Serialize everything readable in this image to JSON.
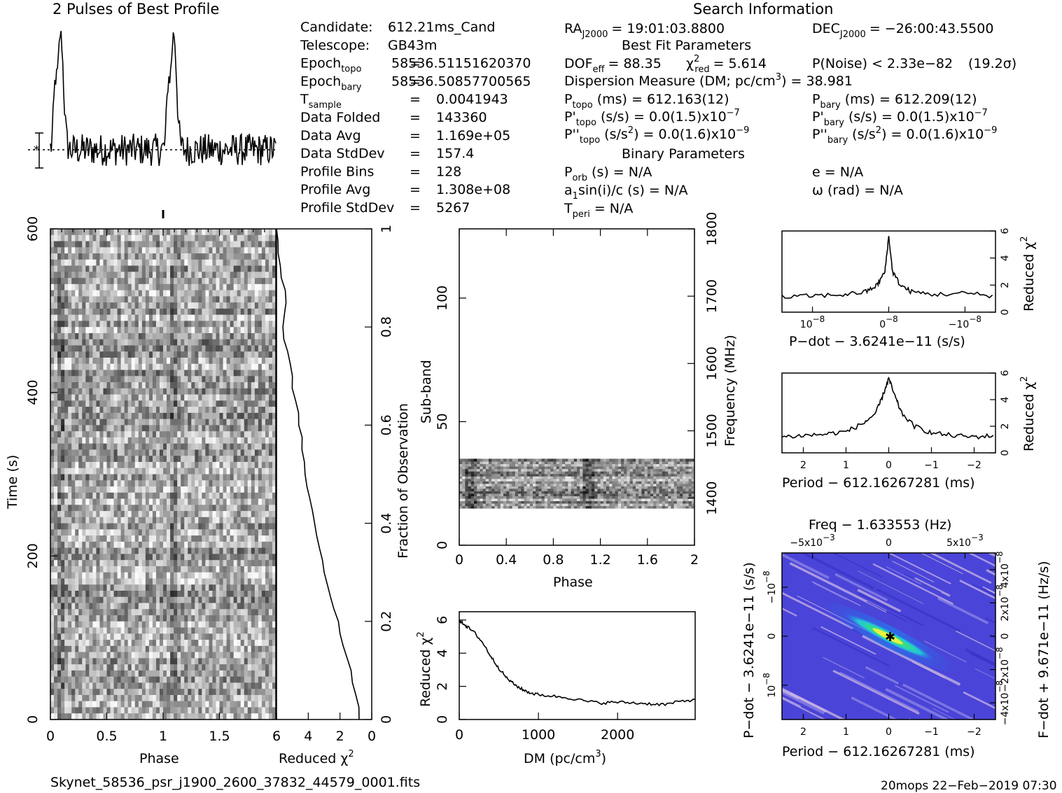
{
  "title_profile": "2 Pulses of Best Profile",
  "title_search": "Search Information",
  "info_left": [
    {
      "label": "Candidate:",
      "eq": "",
      "value": "612.21ms_Cand"
    },
    {
      "label": "Telescope:",
      "eq": "",
      "value": "GB43m"
    },
    {
      "label": "Epoch",
      "sub": "topo",
      "eq": "=",
      "value": "58536.5115162037​0"
    },
    {
      "label": "Epoch",
      "sub": "bary",
      "eq": "=",
      "value": "58536.50857700565"
    },
    {
      "label": "T",
      "sub": "sample",
      "eq": "=",
      "value": "0.0041943"
    },
    {
      "label": "Data Folded",
      "eq": "=",
      "value": "143360"
    },
    {
      "label": "Data Avg",
      "eq": "=",
      "value": "1.169e+05"
    },
    {
      "label": "Data StdDev",
      "eq": "=",
      "value": "157.4"
    },
    {
      "label": "Profile Bins",
      "eq": "=",
      "value": "128"
    },
    {
      "label": "Profile Avg",
      "eq": "=",
      "value": "1.308e+08"
    },
    {
      "label": "Profile StdDev",
      "eq": "=",
      "value": "5267"
    }
  ],
  "search": {
    "ra_label": "RA",
    "ra_sub": "J2000",
    "ra_value": "= 19:01:03.8800",
    "dec_label": "DEC",
    "dec_sub": "J2000",
    "dec_value": "= −26:00:43.5500",
    "best_fit_title": "Best Fit Parameters",
    "dof_label": "DOF",
    "dof_sub": "eff",
    "dof_value": "= 88.35",
    "chi_label": "χ",
    "chi_sup": "2",
    "chi_sub": "red",
    "chi_value": "= 5.614",
    "pnoise": "P(Noise) < 2.33e−82",
    "sigma": "(19.2σ)",
    "dm_line_a": "Dispersion Measure (DM; pc/cm",
    "dm_line_sup": "3",
    "dm_line_b": ") = 38.981",
    "ptopo_label": "P",
    "ptopo_sub": "topo",
    "ptopo_rest": "(ms) =  612.163(12)",
    "pbary_label": "P",
    "pbary_sub": "bary",
    "pbary_rest": "(ms) =  612.209(12)",
    "pdtopo_label": "P'",
    "pdtopo_sub": "topo",
    "pdtopo_rest": "(s/s) = 0.0(1.5)x10",
    "pdtopo_exp": "−7",
    "pdbary_label": "P'",
    "pdbary_sub": "bary",
    "pdbary_rest": "(s/s) = 0.0(1.5)x10",
    "pdbary_exp": "−7",
    "pddtopo_label": "P''",
    "pddtopo_sub": "topo",
    "pddtopo_rest_a": "(s/s",
    "pddtopo_rest_sup": "2",
    "pddtopo_rest_b": ") = 0.0(1.6)x10",
    "pddtopo_exp": "−9",
    "pddbary_label": "P''",
    "pddbary_sub": "bary",
    "pddbary_rest_a": "(s/s",
    "pddbary_rest_sup": "2",
    "pddbary_rest_b": ") = 0.0(1.6)x10",
    "pddbary_exp": "−9",
    "binary_title": "Binary Parameters",
    "porb_label": "P",
    "porb_sub": "orb",
    "porb_rest": "(s) = N/A",
    "e_line": "e = N/A",
    "a1_label": "a",
    "a1_sub": "1",
    "a1_rest": "sin(i)/c (s) = N/A",
    "omega_line": "ω (rad) = N/A",
    "tperi_label": "T",
    "tperi_sub": "peri",
    "tperi_rest": "= N/A"
  },
  "footer_left": "Skynet_58536_psr_j1900_2600_37832_44579_0001.fits",
  "footer_right": "20mops 22−Feb−2019 07:30",
  "chart_data": [
    {
      "type": "line",
      "name_id": "pulse-profile",
      "title": "2 Pulses of Best Profile",
      "xlabel": "",
      "ylabel": "",
      "x_range": [
        0,
        2
      ],
      "pulse_phases": [
        0.09,
        1.09
      ],
      "baseline_relative": 0.0,
      "peak_relative": 1.0
    },
    {
      "type": "heatmap",
      "name_id": "time-phase",
      "xlabel": "Phase",
      "ylabel": "Time (s)",
      "x_range": [
        0,
        2
      ],
      "y_range": [
        0,
        600
      ],
      "x_ticks": [
        "0",
        "0.5",
        "1",
        "1.5"
      ],
      "y_ticks": [
        "0",
        "200",
        "400",
        "600"
      ],
      "colormap": "grayscale"
    },
    {
      "type": "line",
      "name_id": "time-reduced-chi2",
      "xlabel": "Reduced χ",
      "xlabel_sup": "2",
      "ylabel_right": "Fraction of Observation",
      "x_range": [
        6,
        0
      ],
      "y_range": [
        0,
        1
      ],
      "x_ticks": [
        "6",
        "4",
        "2",
        "0"
      ],
      "y_ticks": [
        "0",
        "0.2",
        "0.4",
        "0.6",
        "0.8",
        "1"
      ],
      "x": [
        0.8,
        1.0,
        1.3,
        1.8,
        2.1,
        2.6,
        3.0,
        3.3,
        3.6,
        3.9,
        4.2,
        4.4,
        4.6,
        4.8,
        5.0,
        5.3,
        5.6,
        5.4,
        5.7,
        5.9,
        6.0
      ],
      "y": [
        0.0,
        0.05,
        0.1,
        0.15,
        0.2,
        0.25,
        0.3,
        0.35,
        0.4,
        0.45,
        0.5,
        0.55,
        0.6,
        0.65,
        0.7,
        0.75,
        0.8,
        0.85,
        0.9,
        0.95,
        1.0
      ]
    },
    {
      "type": "heatmap",
      "name_id": "subband-phase",
      "xlabel": "Phase",
      "ylabel": "Sub-band",
      "ylabel_right": "Frequency (MHz)",
      "x_range": [
        0,
        2
      ],
      "y_range": [
        0,
        128
      ],
      "x_ticks": [
        "0",
        "0.4",
        "0.8",
        "1.2",
        "1.6",
        "2"
      ],
      "y_ticks": [
        "0",
        "50",
        "100"
      ],
      "y2_ticks": [
        "1400",
        "1500",
        "1600",
        "1700",
        "1800"
      ],
      "occupied_subbands": [
        15,
        35
      ],
      "colormap": "grayscale"
    },
    {
      "type": "line",
      "name_id": "dm-chi2",
      "xlabel": "DM (pc/cm",
      "xlabel_sup": "3",
      "xlabel_end": ")",
      "ylabel": "Reduced χ",
      "ylabel_sup": "2",
      "x_range": [
        0,
        2980
      ],
      "y_range": [
        0,
        6.5
      ],
      "x_ticks": [
        "0",
        "1000",
        "2000"
      ],
      "y_ticks": [
        "0",
        "2",
        "4",
        "6"
      ],
      "x": [
        0,
        50,
        100,
        200,
        300,
        400,
        500,
        600,
        700,
        800,
        900,
        1000,
        1200,
        1400,
        1600,
        1800,
        2000,
        2200,
        2400,
        2600,
        2800,
        2980
      ],
      "y": [
        5.9,
        5.8,
        5.6,
        5.2,
        4.6,
        3.8,
        3.1,
        2.5,
        2.1,
        1.8,
        1.6,
        1.5,
        1.4,
        1.3,
        1.1,
        1.0,
        1.05,
        1.0,
        0.95,
        0.9,
        1.1,
        1.2
      ]
    },
    {
      "type": "line",
      "name_id": "pdot-chi2",
      "xlabel": "P−dot − 3.6241e−11 (s/s)",
      "ylabel_right": "Reduced χ",
      "ylabel_sup": "2",
      "x_range": [
        1.4e-08,
        -1.4e-08
      ],
      "y_range": [
        0,
        6
      ],
      "x_ticks": [
        "10",
        "0",
        "−10"
      ],
      "x_tick_exp": "−8",
      "y_ticks": [
        "0",
        "2",
        "4",
        "6"
      ],
      "x": [
        1.4e-08,
        1e-08,
        6e-09,
        3e-09,
        1.5e-09,
        5e-10,
        0,
        -5e-10,
        -1.5e-09,
        -3e-09,
        -6e-09,
        -1e-08,
        -1.4e-08
      ],
      "y": [
        1.1,
        1.2,
        1.3,
        1.5,
        2.0,
        3.0,
        5.6,
        3.0,
        2.0,
        1.5,
        1.3,
        1.4,
        1.2
      ]
    },
    {
      "type": "line",
      "name_id": "period-chi2",
      "xlabel": "Period − 612.16267281 (ms)",
      "ylabel_right": "Reduced χ",
      "ylabel_sup": "2",
      "x_range": [
        2.5,
        -2.5
      ],
      "y_range": [
        0,
        6
      ],
      "x_ticks": [
        "2",
        "1",
        "0",
        "−1",
        "−2"
      ],
      "y_ticks": [
        "0",
        "2",
        "4",
        "6"
      ],
      "x": [
        2.5,
        2.0,
        1.5,
        1.0,
        0.6,
        0.3,
        0.15,
        0.0,
        -0.15,
        -0.3,
        -0.6,
        -1.0,
        -1.5,
        -2.0,
        -2.5
      ],
      "y": [
        1.2,
        1.3,
        1.4,
        1.6,
        2.2,
        3.0,
        4.2,
        5.6,
        4.2,
        3.0,
        2.0,
        1.5,
        1.3,
        1.2,
        1.3
      ]
    },
    {
      "type": "heatmap",
      "name_id": "period-pdot",
      "title": "Freq − 1.633553 (Hz)",
      "xlabel": "Period − 612.16267281 (ms)",
      "ylabel": "P−dot − 3.6241e−11 (s/s)",
      "ylabel_right": "F−dot + 9.671e−11 (Hz/s)",
      "x_range": [
        2.5,
        -2.5
      ],
      "y_range": [
        -1.7e-08,
        1.7e-08
      ],
      "x_ticks": [
        "2",
        "1",
        "0",
        "−1",
        "−2"
      ],
      "top_ticks": [
        "−5x10",
        "0",
        "5x10"
      ],
      "top_tick_exp": "−3",
      "left_ticks": [
        "−10",
        "0",
        "10"
      ],
      "left_tick_exp": "−8",
      "right_ticks": [
        "4x10",
        "2x10",
        "0",
        "−2x10",
        "−4x10"
      ],
      "right_tick_exp": "−8",
      "colormap": "blue-green-yellow",
      "peak": [
        0,
        0
      ]
    }
  ],
  "colors": {
    "ppdot_background": "#4a44d8",
    "ppdot_light": "#c9b6e6",
    "ppdot_core": "#39e07a",
    "ppdot_peak": "#f3f33a"
  }
}
